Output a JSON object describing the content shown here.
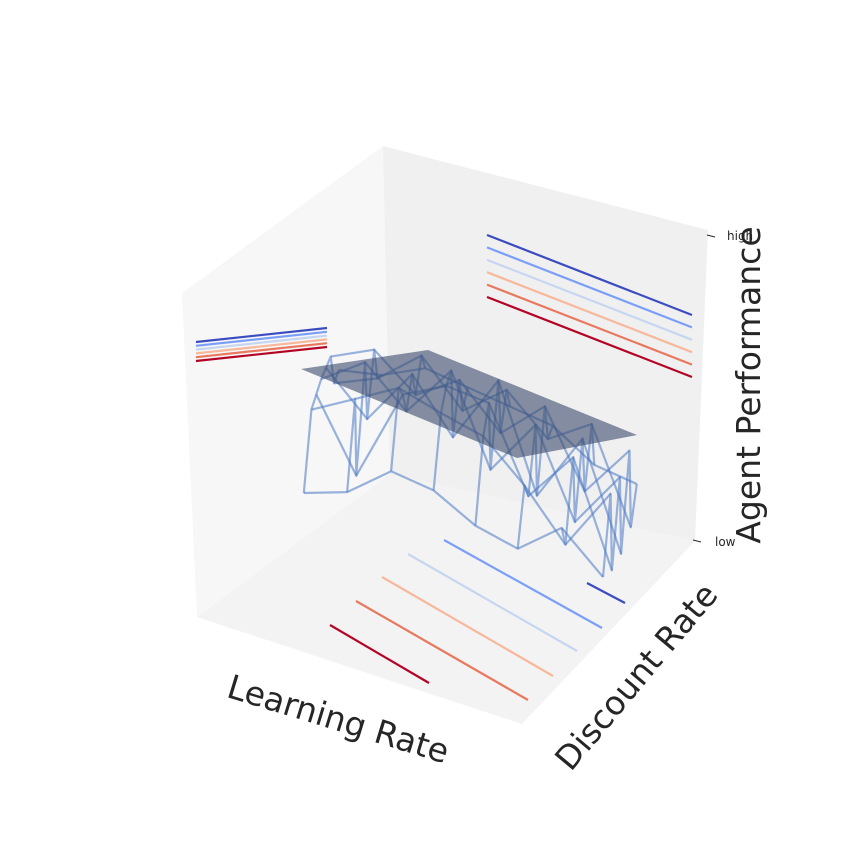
{
  "chart_data": {
    "type": "surface3d",
    "title": "",
    "xlabel": "Learning Rate",
    "ylabel": "Discount Rate",
    "zlabel": "Agent Performance",
    "zticks": [
      "low",
      "high"
    ],
    "grid": false,
    "x": [
      0,
      1,
      2,
      3,
      4,
      5,
      6,
      7
    ],
    "y": [
      0,
      1,
      2,
      3,
      4,
      5,
      6,
      7
    ],
    "z": [
      [
        0.1,
        0.5,
        0.56,
        0.62,
        0.66,
        0.7,
        0.55,
        0.6
      ],
      [
        0.15,
        0.6,
        0.2,
        0.75,
        0.45,
        0.78,
        0.62,
        0.62
      ],
      [
        0.3,
        0.7,
        0.65,
        0.55,
        0.72,
        0.6,
        0.78,
        0.7
      ],
      [
        0.25,
        0.62,
        0.74,
        0.8,
        0.45,
        0.72,
        0.55,
        0.65
      ],
      [
        0.12,
        0.55,
        0.7,
        0.35,
        0.78,
        0.5,
        0.7,
        0.6
      ],
      [
        0.05,
        0.35,
        0.28,
        0.62,
        0.25,
        0.68,
        0.5,
        0.55
      ],
      [
        0.2,
        0.1,
        0.52,
        0.18,
        0.58,
        0.3,
        0.62,
        0.4
      ],
      [
        0.0,
        0.4,
        0.0,
        0.45,
        0.05,
        0.55,
        0.15,
        0.35
      ]
    ],
    "plane_level": 0.5,
    "contour_levels": [
      0.1,
      0.25,
      0.4,
      0.55,
      0.7,
      0.85
    ],
    "colors": {
      "wire": "#4a79c4",
      "plane": "#3b4a6b",
      "contours": [
        "#b40426",
        "#e9785d",
        "#f7b89c",
        "#c6d6f1",
        "#7b9ff9",
        "#3b4cc0"
      ]
    }
  }
}
